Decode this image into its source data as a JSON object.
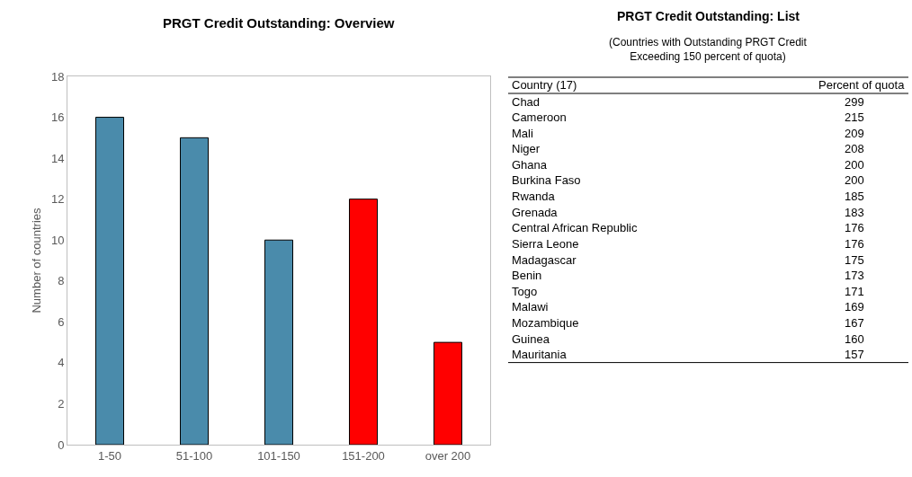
{
  "chart_data": [
    {
      "type": "bar",
      "title": "PRGT Credit Outstanding: Overview",
      "ylabel": "Number of countries",
      "categories": [
        "1-50",
        "51-100",
        "101-150",
        "151-200",
        "over 200"
      ],
      "values": [
        16,
        15,
        10,
        12,
        5
      ],
      "colors": [
        "#4a8bab",
        "#4a8bab",
        "#4a8bab",
        "#ff0000",
        "#ff0000"
      ],
      "ylim": [
        0,
        18
      ],
      "yticks": [
        0,
        2,
        4,
        6,
        8,
        10,
        12,
        14,
        16,
        18
      ],
      "grid": false
    },
    {
      "type": "other",
      "title": "PRGT Credit Outstanding: List",
      "subtitle": "(Countries with Outstanding PRGT Credit\nExceeding 150 percent of quota)",
      "xlabel": "Country (17)",
      "ylabel": "Percent of quota",
      "categories": [
        "Chad",
        "Cameroon",
        "Mali",
        "Niger",
        "Ghana",
        "Burkina Faso",
        "Rwanda",
        "Grenada",
        "Central African Republic",
        "Sierra Leone",
        "Madagascar",
        "Benin",
        "Togo",
        "Malawi",
        "Mozambique",
        "Guinea",
        "Mauritania"
      ],
      "values": [
        299,
        215,
        209,
        208,
        200,
        200,
        185,
        183,
        176,
        176,
        175,
        173,
        171,
        169,
        167,
        160,
        157
      ],
      "data_labels": true
    }
  ]
}
